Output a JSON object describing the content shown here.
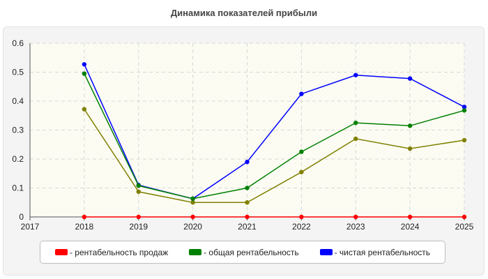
{
  "chart_data": {
    "type": "line",
    "title": "Динамика показателей прибыли",
    "xlabel": "",
    "ylabel": "",
    "x_ticks": [
      "2017",
      "2018",
      "2019",
      "2020",
      "2021",
      "2022",
      "2023",
      "2024",
      "2025"
    ],
    "xlim": [
      2017,
      2025
    ],
    "y_ticks": [
      "0",
      "0.1",
      "0.2",
      "0.3",
      "0.4",
      "0.5",
      "0.6"
    ],
    "ylim": [
      0,
      0.6
    ],
    "grid": true,
    "legend_position": "bottom",
    "x": [
      2018,
      2019,
      2020,
      2021,
      2022,
      2023,
      2024,
      2025
    ],
    "series": [
      {
        "name": "рентабельность продаж",
        "legend_label": "- рентабельность продаж",
        "color": "#ff0000",
        "values": [
          0,
          0,
          0,
          0,
          0,
          0,
          0,
          0
        ]
      },
      {
        "name": "общая рентабельность",
        "legend_label": "- общая рентабельность",
        "color": "#008000",
        "values": [
          0.495,
          0.108,
          0.063,
          0.1,
          0.225,
          0.325,
          0.315,
          0.368
        ]
      },
      {
        "name": "чистая рентабельность",
        "legend_label": "- чистая рентабельность",
        "color": "#0000ff",
        "values": [
          0.527,
          0.11,
          0.063,
          0.19,
          0.425,
          0.49,
          0.478,
          0.38
        ]
      },
      {
        "name": "",
        "legend_label": "",
        "color": "#808000",
        "in_legend": false,
        "values": [
          0.372,
          0.087,
          0.05,
          0.05,
          0.155,
          0.27,
          0.236,
          0.265
        ]
      }
    ]
  }
}
